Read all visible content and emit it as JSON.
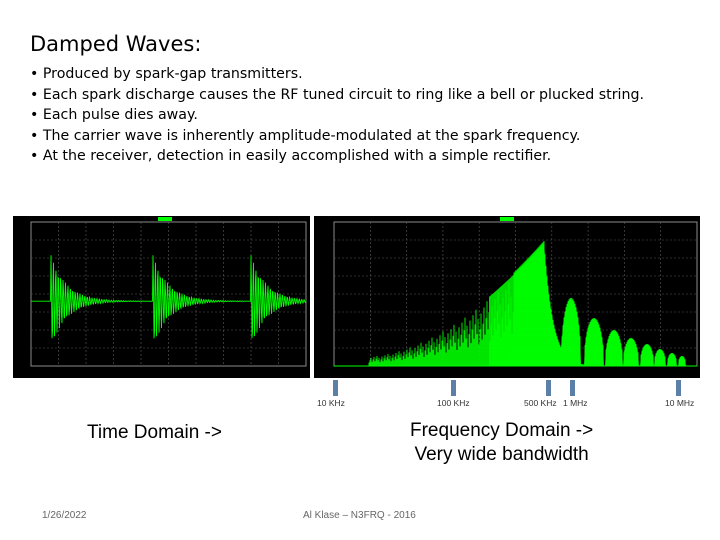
{
  "slide": {
    "title": "Damped Waves:",
    "bullets": [
      "• Produced by spark-gap transmitters.",
      "• Each spark discharge causes the RF tuned circuit to ring like a bell or plucked string.",
      "• Each pulse dies away.",
      "• The carrier wave is inherently amplitude-modulated at the spark frequency.",
      "• At the receiver, detection in easily accomplished with a simple rectifier."
    ],
    "time_caption": "Time Domain ->",
    "freq_caption_line1": "Frequency Domain ->",
    "freq_caption_line2": "Very wide bandwidth",
    "freq_markers": [
      "10 KHz",
      "100 KHz",
      "500 KHz",
      "1 MHz",
      "10 MHz"
    ],
    "footer_date": "1/26/2022",
    "footer_author": "Al Klase – N3FRQ - 2016"
  },
  "colors": {
    "trace": "#00ff00",
    "plot_bg": "#000000",
    "marker": "#5b7fa6"
  }
}
